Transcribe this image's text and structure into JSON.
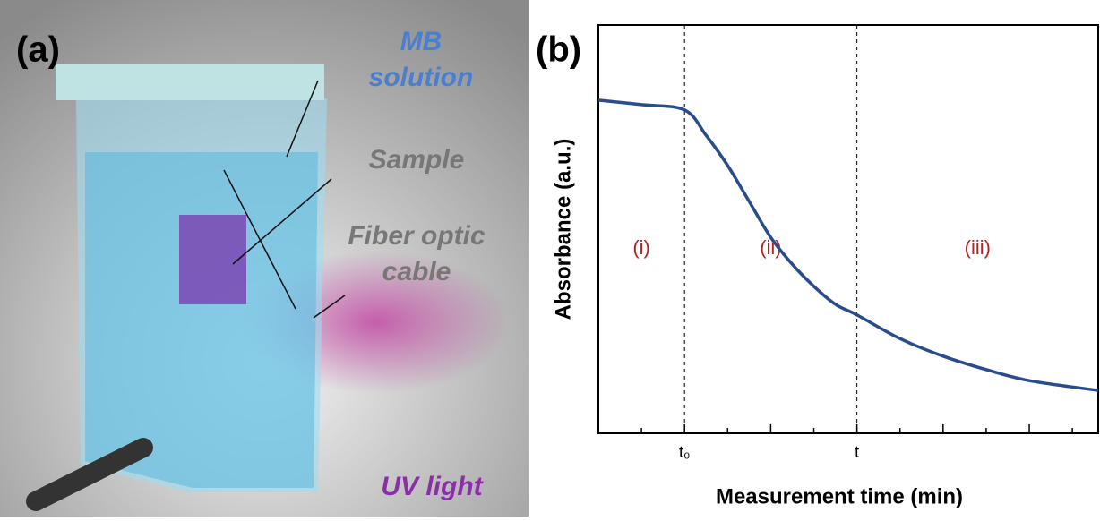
{
  "panel_a": {
    "label": "(a)",
    "texts": [
      "MB",
      "solution",
      "Sample",
      "Fiber optic",
      "cable",
      "UV light"
    ]
  },
  "chart_data": {
    "type": "line",
    "panel_label": "(b)",
    "x_label": "Measurement time (min)",
    "y_label": "Absorbance (a.u.)",
    "x": [
      0,
      1,
      2,
      2.5,
      3,
      3.5,
      4,
      4.5,
      5,
      5.5,
      6,
      7,
      8,
      9,
      10,
      11.6
    ],
    "series": [
      {
        "color": "#2b4c8c",
        "values": [
          8.16,
          8.05,
          7.92,
          7.3,
          6.56,
          5.68,
          4.8,
          4.14,
          3.6,
          3.16,
          2.9,
          2.32,
          1.89,
          1.56,
          1.29,
          1.05
        ]
      }
    ],
    "xlim": [
      0,
      11.6
    ],
    "ylim": [
      0,
      10
    ],
    "xticks": [
      {
        "value": 2,
        "label": "t₀"
      },
      {
        "value": 6,
        "label": "t"
      }
    ],
    "minor_xticks": [
      1,
      3,
      4,
      5,
      7,
      8,
      9,
      10,
      11
    ],
    "annotations": [
      "(i)",
      "(ii)",
      "(iii)"
    ],
    "annotation_color": "#b22222"
  }
}
